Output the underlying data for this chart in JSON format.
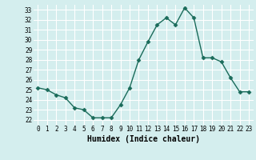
{
  "x": [
    0,
    1,
    2,
    3,
    4,
    5,
    6,
    7,
    8,
    9,
    10,
    11,
    12,
    13,
    14,
    15,
    16,
    17,
    18,
    19,
    20,
    21,
    22,
    23
  ],
  "y": [
    25.2,
    25.0,
    24.5,
    24.2,
    23.2,
    23.0,
    22.2,
    22.2,
    22.2,
    23.5,
    25.2,
    28.0,
    29.8,
    31.5,
    32.2,
    31.5,
    33.2,
    32.2,
    28.2,
    28.2,
    27.8,
    26.2,
    24.8,
    24.8
  ],
  "line_color": "#1a6b5a",
  "marker": "D",
  "markersize": 2.5,
  "linewidth": 1.0,
  "bg_color": "#d4eeee",
  "grid_color": "#ffffff",
  "xlabel": "Humidex (Indice chaleur)",
  "xlim": [
    -0.5,
    23.5
  ],
  "ylim": [
    21.5,
    33.5
  ],
  "yticks": [
    22,
    23,
    24,
    25,
    26,
    27,
    28,
    29,
    30,
    31,
    32,
    33
  ],
  "xticks": [
    0,
    1,
    2,
    3,
    4,
    5,
    6,
    7,
    8,
    9,
    10,
    11,
    12,
    13,
    14,
    15,
    16,
    17,
    18,
    19,
    20,
    21,
    22,
    23
  ],
  "xtick_labels": [
    "0",
    "1",
    "2",
    "3",
    "4",
    "5",
    "6",
    "7",
    "8",
    "9",
    "10",
    "11",
    "12",
    "13",
    "14",
    "15",
    "16",
    "17",
    "18",
    "19",
    "20",
    "21",
    "22",
    "23"
  ],
  "tick_fontsize": 5.5,
  "xlabel_fontsize": 7.0
}
